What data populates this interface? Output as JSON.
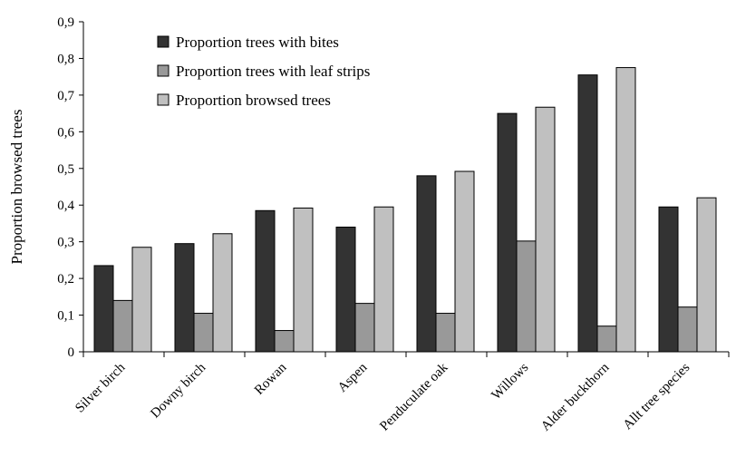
{
  "chart_data": {
    "type": "bar",
    "ylabel": "Proportion browsed trees",
    "xlabel": "",
    "ylim": [
      0,
      0.9
    ],
    "yticks": [
      "0",
      "0,1",
      "0,2",
      "0,3",
      "0,4",
      "0,5",
      "0,6",
      "0,7",
      "0,8",
      "0,9"
    ],
    "grid": false,
    "legend_placement": "top-left",
    "categories": [
      "Silver birch",
      "Downy birch",
      "Rowan",
      "Aspen",
      "Penduculate oak",
      "Willows",
      "Alder buckthorn",
      "Allt tree species"
    ],
    "series": [
      {
        "name": "Proportion trees with bites",
        "color": "#333333",
        "values": [
          0.235,
          0.295,
          0.385,
          0.34,
          0.48,
          0.65,
          0.755,
          0.395
        ]
      },
      {
        "name": "Proportion trees with leaf strips",
        "color": "#999999",
        "values": [
          0.14,
          0.105,
          0.058,
          0.132,
          0.105,
          0.302,
          0.07,
          0.122
        ]
      },
      {
        "name": "Proportion browsed trees",
        "color": "#c0c0c0",
        "values": [
          0.285,
          0.322,
          0.392,
          0.395,
          0.492,
          0.667,
          0.775,
          0.42
        ]
      }
    ]
  }
}
